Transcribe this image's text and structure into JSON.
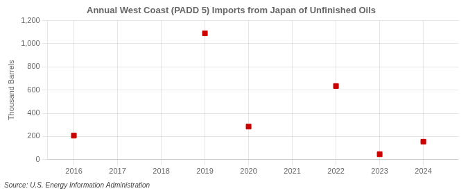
{
  "chart_data": {
    "type": "scatter",
    "title": "Annual West Coast (PADD 5) Imports from Japan of Unfinished Oils",
    "y_label": "Thousand Barrels",
    "annotations": [
      "Source: U.S. Energy Information Administration"
    ],
    "x": [
      2016,
      2019,
      2020,
      2022,
      2023,
      2024
    ],
    "values": [
      207,
      1090,
      285,
      635,
      46,
      155
    ],
    "color": "#cc0000",
    "marker": "square",
    "xlim": [
      2015.4,
      2024.8
    ],
    "xticks": [
      2016,
      2017,
      2018,
      2019,
      2020,
      2021,
      2022,
      2023,
      2024
    ],
    "ylim": [
      0,
      1200
    ],
    "yticks": [
      0,
      200,
      400,
      600,
      800,
      {
        "value": 1000,
        "label": "1,000"
      },
      {
        "value": 1200,
        "label": "1,200"
      }
    ],
    "grid": true
  }
}
